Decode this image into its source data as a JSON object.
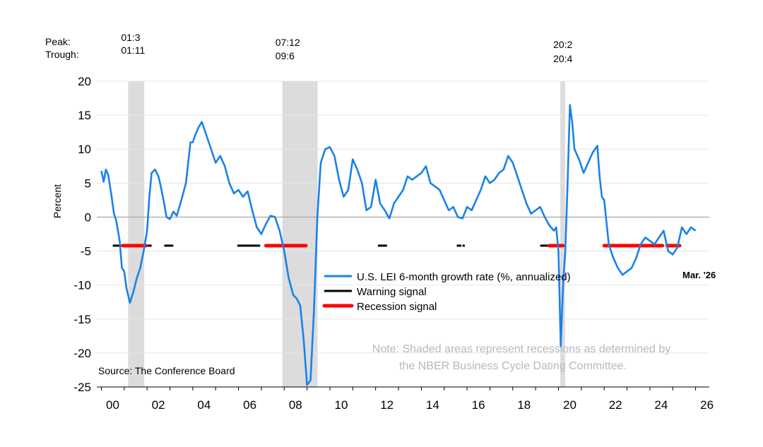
{
  "chart_data": {
    "type": "line",
    "ylabel": "Percent",
    "ylim": [
      -25,
      20
    ],
    "yticks": [
      20,
      15,
      10,
      5,
      0,
      -5,
      -10,
      -15,
      -20,
      -25
    ],
    "xlim": [
      1999.8,
      2026.6
    ],
    "xticks": [
      2000,
      2002,
      2004,
      2006,
      2008,
      2010,
      2012,
      2014,
      2016,
      2018,
      2020,
      2022,
      2024,
      2026
    ],
    "xtick_labels": [
      "00",
      "02",
      "04",
      "06",
      "08",
      "10",
      "12",
      "14",
      "16",
      "18",
      "20",
      "22",
      "24",
      "26"
    ],
    "grid": true,
    "source": "Source: The Conference Board",
    "note_line1": "Note: Shaded areas represent recessions as determined by",
    "note_line2": "the NBER Business Cycle Dating Committee.",
    "latest_label": "Mar. '26",
    "recession_header": {
      "peak_label": "Peak:",
      "trough_label": "Trough:"
    },
    "recessions": [
      {
        "peak": "01:3",
        "trough": "01:11",
        "start": 2001.17,
        "end": 2001.88
      },
      {
        "peak": "07:12",
        "trough": "09:6",
        "start": 2007.92,
        "end": 2009.46
      },
      {
        "peak": "20:2",
        "trough": "20:4",
        "start": 2020.08,
        "end": 2020.29
      }
    ],
    "signal_level": -4.2,
    "legend": [
      {
        "name": "U.S. LEI 6-month growth rate (%, annualized)",
        "color": "#1a82e8"
      },
      {
        "name": "Warning signal",
        "color": "#000000"
      },
      {
        "name": "Recession signal",
        "color": "#ff0000"
      }
    ],
    "warning_segments": [
      [
        2000.5,
        2001.0
      ],
      [
        2001.9,
        2002.2
      ],
      [
        2002.75,
        2003.15
      ],
      [
        2005.95,
        2006.95
      ],
      [
        2012.1,
        2012.5
      ],
      [
        2015.55,
        2015.75
      ],
      [
        2015.8,
        2015.9
      ],
      [
        2019.2,
        2019.6
      ],
      [
        2024.4,
        2024.6
      ]
    ],
    "recession_segments": [
      [
        2000.95,
        2001.95
      ],
      [
        2007.2,
        2008.95
      ],
      [
        2019.6,
        2020.2
      ],
      [
        2022.0,
        2024.55
      ],
      [
        2024.75,
        2025.3
      ]
    ],
    "series": [
      {
        "name": "U.S. LEI 6-month growth rate (%, annualized)",
        "x": [
          2000.0,
          2000.1,
          2000.2,
          2000.3,
          2000.45,
          2000.55,
          2000.65,
          2000.8,
          2000.9,
          2001.0,
          2001.1,
          2001.25,
          2001.4,
          2001.55,
          2001.7,
          2001.85,
          2002.0,
          2002.1,
          2002.2,
          2002.35,
          2002.5,
          2002.6,
          2002.75,
          2002.85,
          2003.0,
          2003.15,
          2003.3,
          2003.5,
          2003.7,
          2003.9,
          2004.0,
          2004.1,
          2004.25,
          2004.4,
          2004.6,
          2004.8,
          2005.0,
          2005.2,
          2005.4,
          2005.6,
          2005.8,
          2006.0,
          2006.2,
          2006.4,
          2006.6,
          2006.8,
          2007.0,
          2007.2,
          2007.4,
          2007.6,
          2007.8,
          2008.0,
          2008.2,
          2008.4,
          2008.55,
          2008.7,
          2008.85,
          2009.0,
          2009.15,
          2009.3,
          2009.45,
          2009.6,
          2009.8,
          2010.0,
          2010.2,
          2010.4,
          2010.6,
          2010.8,
          2011.0,
          2011.2,
          2011.4,
          2011.6,
          2011.8,
          2012.0,
          2012.2,
          2012.4,
          2012.6,
          2012.8,
          2013.0,
          2013.2,
          2013.4,
          2013.6,
          2013.8,
          2014.0,
          2014.2,
          2014.4,
          2014.6,
          2014.8,
          2015.0,
          2015.2,
          2015.4,
          2015.6,
          2015.8,
          2016.0,
          2016.2,
          2016.4,
          2016.6,
          2016.8,
          2017.0,
          2017.2,
          2017.4,
          2017.6,
          2017.8,
          2018.0,
          2018.2,
          2018.4,
          2018.6,
          2018.8,
          2019.0,
          2019.2,
          2019.4,
          2019.6,
          2019.8,
          2019.9,
          2020.0,
          2020.1,
          2020.2,
          2020.3,
          2020.4,
          2020.5,
          2020.6,
          2020.7,
          2020.9,
          2021.1,
          2021.3,
          2021.5,
          2021.7,
          2021.8,
          2021.9,
          2022.0,
          2022.2,
          2022.4,
          2022.6,
          2022.8,
          2023.0,
          2023.2,
          2023.4,
          2023.6,
          2023.8,
          2024.0,
          2024.2,
          2024.4,
          2024.6,
          2024.8,
          2025.0,
          2025.2,
          2025.4,
          2025.6,
          2025.8,
          2026.0
        ],
        "values": [
          6.8,
          5.2,
          7.0,
          6.2,
          3.0,
          0.5,
          -0.5,
          -3.5,
          -7.5,
          -8.0,
          -10.5,
          -12.6,
          -11.0,
          -9.0,
          -7.5,
          -5.0,
          -2.0,
          3.0,
          6.5,
          7.0,
          6.0,
          4.5,
          2.0,
          0.0,
          -0.3,
          0.8,
          0.2,
          2.5,
          5.0,
          11.0,
          11.0,
          12.0,
          13.2,
          14.0,
          12.0,
          10.0,
          8.0,
          9.0,
          7.5,
          5.0,
          3.5,
          4.0,
          3.0,
          3.8,
          1.0,
          -1.5,
          -2.5,
          -1.0,
          0.2,
          0.0,
          -2.0,
          -5.0,
          -9.0,
          -11.5,
          -12.0,
          -13.0,
          -18.0,
          -24.7,
          -24.0,
          -14.0,
          0.0,
          8.0,
          10.0,
          10.3,
          9.0,
          5.5,
          3.0,
          4.0,
          8.5,
          7.0,
          5.0,
          1.0,
          1.5,
          5.5,
          2.0,
          1.0,
          -0.2,
          2.0,
          3.0,
          4.0,
          6.0,
          5.5,
          6.0,
          6.5,
          7.5,
          5.0,
          4.5,
          4.0,
          2.5,
          1.0,
          1.5,
          0.0,
          -0.2,
          1.5,
          1.0,
          2.5,
          4.0,
          6.0,
          5.0,
          5.5,
          6.5,
          7.0,
          9.0,
          8.0,
          6.0,
          4.0,
          2.0,
          0.5,
          1.0,
          1.5,
          0.0,
          -1.2,
          -2.0,
          -1.5,
          -5.0,
          -19.0,
          -10.0,
          -5.0,
          5.0,
          16.5,
          14.0,
          10.0,
          8.5,
          6.5,
          8.0,
          9.5,
          10.5,
          6.0,
          3.0,
          2.5,
          -4.0,
          -6.0,
          -7.5,
          -8.5,
          -8.0,
          -7.5,
          -6.0,
          -4.0,
          -3.0,
          -3.5,
          -4.0,
          -3.0,
          -2.0,
          -5.0,
          -5.5,
          -4.5,
          -1.5,
          -2.5,
          -1.5,
          -2.0
        ]
      }
    ]
  }
}
